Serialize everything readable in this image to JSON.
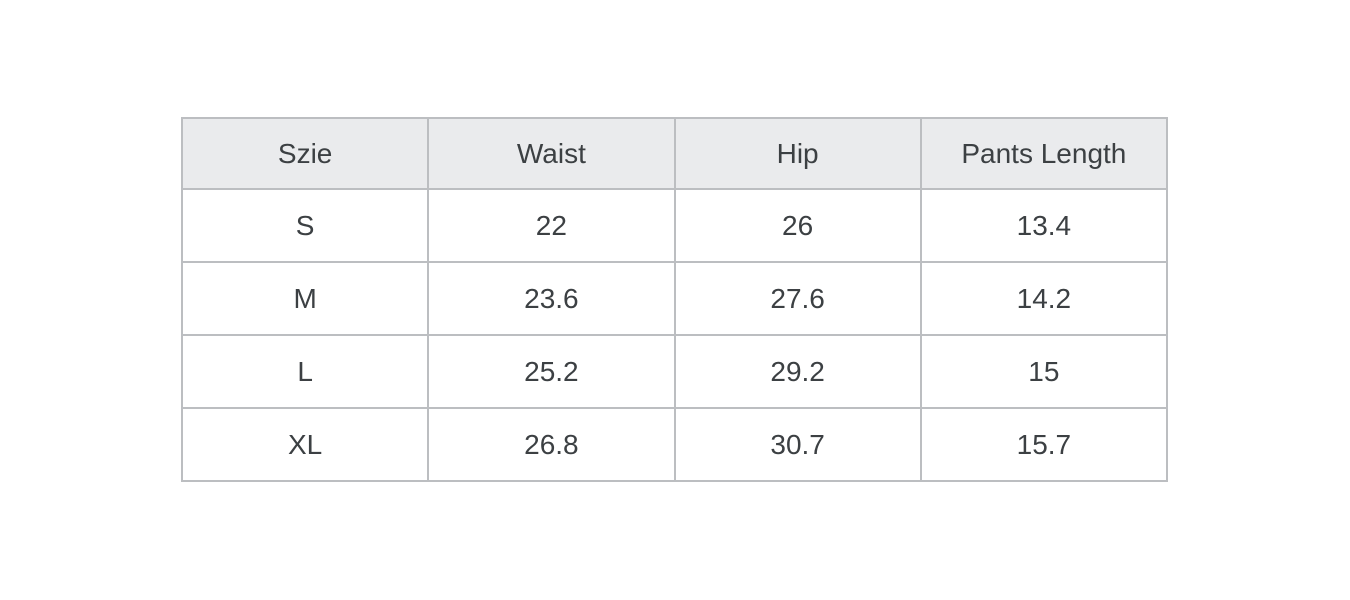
{
  "chart_data": {
    "type": "table",
    "title": "",
    "columns": [
      "Szie",
      "Waist",
      "Hip",
      "Pants Length"
    ],
    "rows": [
      [
        "S",
        "22",
        "26",
        "13.4"
      ],
      [
        "M",
        "23.6",
        "27.6",
        "14.2"
      ],
      [
        "L",
        "25.2",
        "29.2",
        "15"
      ],
      [
        "XL",
        "26.8",
        "30.7",
        "15.7"
      ]
    ]
  },
  "colors": {
    "page_background": "#ffffff",
    "header_background": "#eaebed",
    "border": "#bcbec1",
    "text": "#3c4043"
  }
}
